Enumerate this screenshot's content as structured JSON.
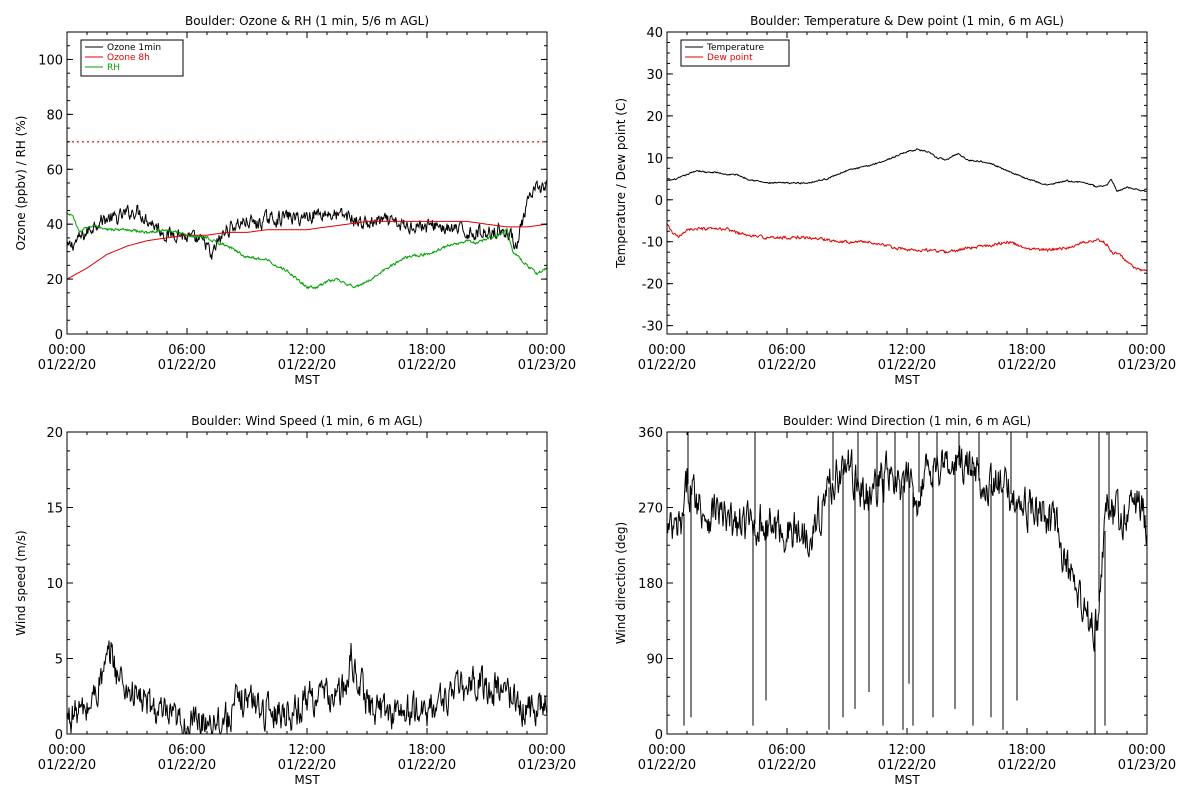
{
  "colors": {
    "black": "#000000",
    "red": "#e00000",
    "green": "#00a000",
    "background": "#ffffff"
  },
  "chart_data": [
    {
      "type": "line",
      "title": "Boulder: Ozone & RH (1 min, 5/6 m AGL)",
      "ylabel": "Ozone (ppbv) / RH (%)",
      "xlabel": "MST",
      "x_range_hours": [
        0,
        24
      ],
      "x_ticks": [
        {
          "hour": 0,
          "time": "00:00",
          "date": "01/22/20"
        },
        {
          "hour": 6,
          "time": "06:00",
          "date": "01/22/20"
        },
        {
          "hour": 12,
          "time": "12:00",
          "date": "01/22/20"
        },
        {
          "hour": 18,
          "time": "18:00",
          "date": "01/22/20"
        },
        {
          "hour": 24,
          "time": "00:00",
          "date": "01/23/20"
        }
      ],
      "ylim": [
        0,
        110
      ],
      "y_ticks": [
        0,
        20,
        40,
        60,
        80,
        100
      ],
      "legend": {
        "placement": "top-left"
      },
      "reference_lines": [
        {
          "y": 70,
          "style": "dotted",
          "color": "#e00000"
        }
      ],
      "series": [
        {
          "name": "Ozone 1min",
          "color": "#000000",
          "jitter": 3,
          "hours": [
            0,
            0.5,
            1,
            1.5,
            2,
            2.5,
            3,
            3.5,
            4,
            4.5,
            5,
            5.5,
            6,
            6.5,
            7,
            7.2,
            7.5,
            8,
            8.5,
            9,
            9.5,
            10,
            10.5,
            11,
            11.5,
            12,
            12.5,
            13,
            13.5,
            14,
            14.5,
            15,
            15.5,
            16,
            16.5,
            17,
            17.5,
            18,
            18.5,
            19,
            19.5,
            20,
            20.5,
            21,
            21.5,
            22,
            22.5,
            23,
            23.5,
            24
          ],
          "values": [
            31,
            34,
            37,
            41,
            42,
            42,
            44,
            45,
            42,
            39,
            36,
            37,
            35,
            34,
            33,
            27,
            33,
            38,
            40,
            41,
            40,
            42,
            42,
            43,
            42,
            43,
            44,
            44,
            43,
            43,
            41,
            40,
            41,
            41,
            40,
            39,
            40,
            39,
            40,
            38,
            38,
            37,
            37,
            37,
            38,
            37,
            33,
            47,
            53,
            54
          ]
        },
        {
          "name": "Ozone 8h",
          "color": "#e00000",
          "jitter": 0,
          "hours": [
            0,
            1,
            2,
            3,
            4,
            5,
            6,
            7,
            8,
            9,
            10,
            11,
            12,
            13,
            14,
            15,
            16,
            17,
            18,
            19,
            20,
            21,
            22,
            23,
            24
          ],
          "values": [
            20,
            24,
            29,
            32,
            34,
            35,
            36,
            36,
            37,
            37,
            38,
            38,
            38,
            39,
            40,
            41,
            41,
            41,
            41,
            41,
            41,
            40,
            39,
            39,
            40
          ]
        },
        {
          "name": "RH",
          "color": "#00a000",
          "jitter": 0.6,
          "hours": [
            0,
            0.3,
            0.6,
            1,
            1.5,
            2,
            3,
            4,
            5,
            6,
            7,
            8,
            9,
            10,
            11,
            11.5,
            12,
            12.5,
            13,
            13.5,
            14,
            14.5,
            15,
            16,
            17,
            18,
            19,
            20,
            20.5,
            21,
            21.5,
            22,
            22.3,
            22.7,
            23,
            23.5,
            24
          ],
          "values": [
            44,
            43,
            37,
            39,
            39,
            38,
            38,
            37,
            38,
            36,
            35,
            32,
            28,
            27,
            23,
            20,
            17,
            17,
            19,
            20,
            18,
            17,
            19,
            24,
            28,
            29,
            32,
            34,
            33,
            35,
            36,
            38,
            30,
            27,
            25,
            22,
            24
          ]
        }
      ]
    },
    {
      "type": "line",
      "title": "Boulder: Temperature & Dew point (1 min, 6 m AGL)",
      "ylabel": "Temperature / Dew point (C)",
      "xlabel": "MST",
      "x_range_hours": [
        0,
        24
      ],
      "x_ticks": [
        {
          "hour": 0,
          "time": "00:00",
          "date": "01/22/20"
        },
        {
          "hour": 6,
          "time": "06:00",
          "date": "01/22/20"
        },
        {
          "hour": 12,
          "time": "12:00",
          "date": "01/22/20"
        },
        {
          "hour": 18,
          "time": "18:00",
          "date": "01/22/20"
        },
        {
          "hour": 24,
          "time": "00:00",
          "date": "01/23/20"
        }
      ],
      "ylim": [
        -32,
        40
      ],
      "y_ticks": [
        -30,
        -20,
        -10,
        0,
        10,
        20,
        30,
        40
      ],
      "legend": {
        "placement": "top-left"
      },
      "series": [
        {
          "name": "Temperature",
          "color": "#000000",
          "jitter": 0.2,
          "hours": [
            0,
            0.5,
            1,
            1.5,
            2,
            2.5,
            3,
            3.5,
            4,
            5,
            6,
            7,
            8,
            9,
            10,
            11,
            11.5,
            12,
            12.5,
            13,
            13.5,
            14,
            14.3,
            14.6,
            15,
            16,
            17,
            18,
            19,
            20,
            21,
            21.5,
            22,
            22.2,
            22.5,
            23,
            24
          ],
          "values": [
            4.5,
            5,
            6,
            7,
            6.5,
            6.5,
            6,
            6,
            5,
            4,
            4,
            4,
            5,
            7,
            8,
            9.5,
            10.5,
            11.5,
            12,
            11.5,
            10,
            9.5,
            10.5,
            11,
            9.5,
            9,
            7,
            5,
            3.5,
            4.5,
            4,
            3,
            3.5,
            5,
            2,
            3,
            2
          ]
        },
        {
          "name": "Dew point",
          "color": "#e00000",
          "jitter": 0.4,
          "hours": [
            0,
            0.3,
            0.6,
            1,
            2,
            3,
            4,
            5,
            6,
            7,
            8,
            9,
            10,
            10.5,
            11,
            12,
            13,
            14,
            15,
            16,
            17,
            18,
            19,
            20,
            21,
            21.5,
            22,
            22.3,
            22.6,
            23,
            23.5,
            24
          ],
          "values": [
            -6,
            -8,
            -9,
            -7,
            -7,
            -7,
            -8.5,
            -9,
            -9,
            -9,
            -9.5,
            -10,
            -10,
            -10.5,
            -11,
            -12,
            -12,
            -12.5,
            -11.5,
            -11,
            -10,
            -11.5,
            -12,
            -11.5,
            -10,
            -9.5,
            -10.5,
            -13,
            -12.5,
            -15,
            -16.5,
            -17
          ]
        }
      ]
    },
    {
      "type": "line",
      "title": "Boulder: Wind Speed (1 min, 6 m AGL)",
      "ylabel": "Wind speed (m/s)",
      "xlabel": "MST",
      "x_range_hours": [
        0,
        24
      ],
      "x_ticks": [
        {
          "hour": 0,
          "time": "00:00",
          "date": "01/22/20"
        },
        {
          "hour": 6,
          "time": "06:00",
          "date": "01/22/20"
        },
        {
          "hour": 12,
          "time": "12:00",
          "date": "01/22/20"
        },
        {
          "hour": 18,
          "time": "18:00",
          "date": "01/22/20"
        },
        {
          "hour": 24,
          "time": "00:00",
          "date": "01/23/20"
        }
      ],
      "ylim": [
        0,
        20
      ],
      "y_ticks": [
        0,
        5,
        10,
        15,
        20
      ],
      "series": [
        {
          "name": "",
          "color": "#000000",
          "jitter": 1.3,
          "hours": [
            0,
            0.5,
            1,
            1.5,
            2,
            2.2,
            2.5,
            3,
            3.5,
            4,
            4.5,
            5,
            6,
            7,
            8,
            8.5,
            9,
            10,
            11,
            11.5,
            12,
            12.5,
            13,
            13.5,
            14,
            14.2,
            14.5,
            15,
            16,
            17,
            18,
            18.5,
            19,
            19.5,
            20,
            20.5,
            21,
            21.5,
            22,
            22.5,
            23,
            23.5,
            24
          ],
          "values": [
            1,
            1.5,
            1.5,
            3,
            4.5,
            5.5,
            4,
            3,
            2.5,
            2,
            1.5,
            1,
            0.5,
            1,
            1,
            2,
            2.5,
            1.5,
            1.5,
            1.5,
            2.5,
            2.5,
            2.5,
            2.5,
            3,
            5,
            4,
            2,
            1.5,
            1.5,
            1.5,
            2,
            2.5,
            3,
            3,
            3.5,
            3,
            3,
            3,
            2,
            1.5,
            2,
            2
          ]
        }
      ]
    },
    {
      "type": "line",
      "title": "Boulder: Wind Direction (1 min, 6 m AGL)",
      "ylabel": "Wind direction (deg)",
      "xlabel": "MST",
      "x_range_hours": [
        0,
        24
      ],
      "x_ticks": [
        {
          "hour": 0,
          "time": "00:00",
          "date": "01/22/20"
        },
        {
          "hour": 6,
          "time": "06:00",
          "date": "01/22/20"
        },
        {
          "hour": 12,
          "time": "12:00",
          "date": "01/22/20"
        },
        {
          "hour": 18,
          "time": "18:00",
          "date": "01/22/20"
        },
        {
          "hour": 24,
          "time": "00:00",
          "date": "01/23/20"
        }
      ],
      "ylim": [
        0,
        360
      ],
      "y_ticks": [
        0,
        90,
        180,
        270,
        360
      ],
      "series": [
        {
          "name": "",
          "color": "#000000",
          "jitter": 28,
          "hours": [
            0,
            0.5,
            0.8,
            1,
            1.5,
            2,
            2.5,
            3,
            4,
            5,
            6,
            7,
            7.5,
            8,
            8.5,
            9,
            9.5,
            10,
            11,
            11.5,
            12,
            12.5,
            13,
            14,
            15,
            16,
            17,
            18,
            19,
            19.5,
            20,
            20.5,
            21,
            21.5,
            22,
            22.5,
            23,
            23.5,
            24
          ],
          "values": [
            240,
            240,
            250,
            300,
            280,
            260,
            270,
            250,
            250,
            250,
            240,
            240,
            250,
            290,
            310,
            320,
            300,
            280,
            310,
            290,
            300,
            280,
            320,
            320,
            320,
            300,
            290,
            270,
            260,
            240,
            200,
            160,
            140,
            130,
            270,
            260,
            260,
            280,
            250
          ]
        }
      ],
      "spikes": [
        {
          "hour": 0.85,
          "value": 10
        },
        {
          "hour": 1.05,
          "value": 360
        },
        {
          "hour": 1.2,
          "value": 20
        },
        {
          "hour": 4.3,
          "value": 10
        },
        {
          "hour": 4.4,
          "value": 360
        },
        {
          "hour": 4.95,
          "value": 40
        },
        {
          "hour": 8.1,
          "value": 5
        },
        {
          "hour": 8.3,
          "value": 360
        },
        {
          "hour": 8.8,
          "value": 20
        },
        {
          "hour": 9.4,
          "value": 30
        },
        {
          "hour": 9.55,
          "value": 360
        },
        {
          "hour": 10.1,
          "value": 50
        },
        {
          "hour": 10.5,
          "value": 360
        },
        {
          "hour": 10.8,
          "value": 10
        },
        {
          "hour": 11.4,
          "value": 360
        },
        {
          "hour": 11.8,
          "value": 5
        },
        {
          "hour": 12.1,
          "value": 60
        },
        {
          "hour": 12.3,
          "value": 10
        },
        {
          "hour": 12.6,
          "value": 360
        },
        {
          "hour": 13.3,
          "value": 20
        },
        {
          "hour": 13.5,
          "value": 360
        },
        {
          "hour": 14.4,
          "value": 30
        },
        {
          "hour": 14.6,
          "value": 360
        },
        {
          "hour": 15.3,
          "value": 10
        },
        {
          "hour": 15.6,
          "value": 360
        },
        {
          "hour": 16.2,
          "value": 20
        },
        {
          "hour": 16.8,
          "value": 5
        },
        {
          "hour": 17.2,
          "value": 360
        },
        {
          "hour": 17.5,
          "value": 40
        },
        {
          "hour": 21.4,
          "value": 0
        },
        {
          "hour": 21.6,
          "value": 360
        },
        {
          "hour": 21.9,
          "value": 10
        },
        {
          "hour": 22.1,
          "value": 360
        }
      ]
    }
  ]
}
